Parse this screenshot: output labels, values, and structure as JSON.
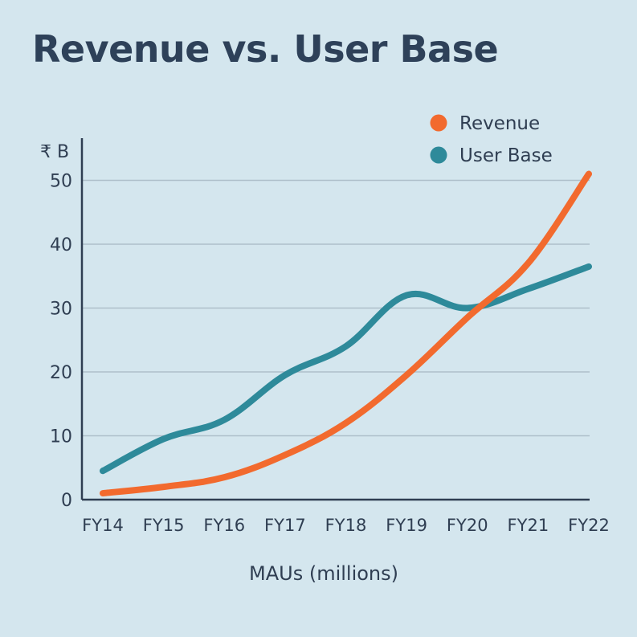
{
  "chart_data": {
    "type": "line",
    "title": "Revenue vs. User Base",
    "xlabel": "MAUs (millions)",
    "y_unit_label": "₹ B",
    "categories": [
      "FY14",
      "FY15",
      "FY16",
      "FY17",
      "FY18",
      "FY19",
      "FY20",
      "FY21",
      "FY22"
    ],
    "ylim": [
      0,
      55
    ],
    "y_ticks": [
      0,
      10,
      20,
      30,
      40,
      50
    ],
    "grid": true,
    "legend_position": "top-right",
    "series": [
      {
        "name": "Revenue",
        "color": "#f26a2e",
        "values": [
          1,
          2,
          3.5,
          7,
          12,
          19.5,
          28.5,
          37,
          51
        ]
      },
      {
        "name": "User Base",
        "color": "#2e8a9a",
        "values": [
          4.5,
          9.5,
          12.5,
          19.5,
          24,
          32,
          30,
          33,
          36.5
        ]
      }
    ]
  }
}
